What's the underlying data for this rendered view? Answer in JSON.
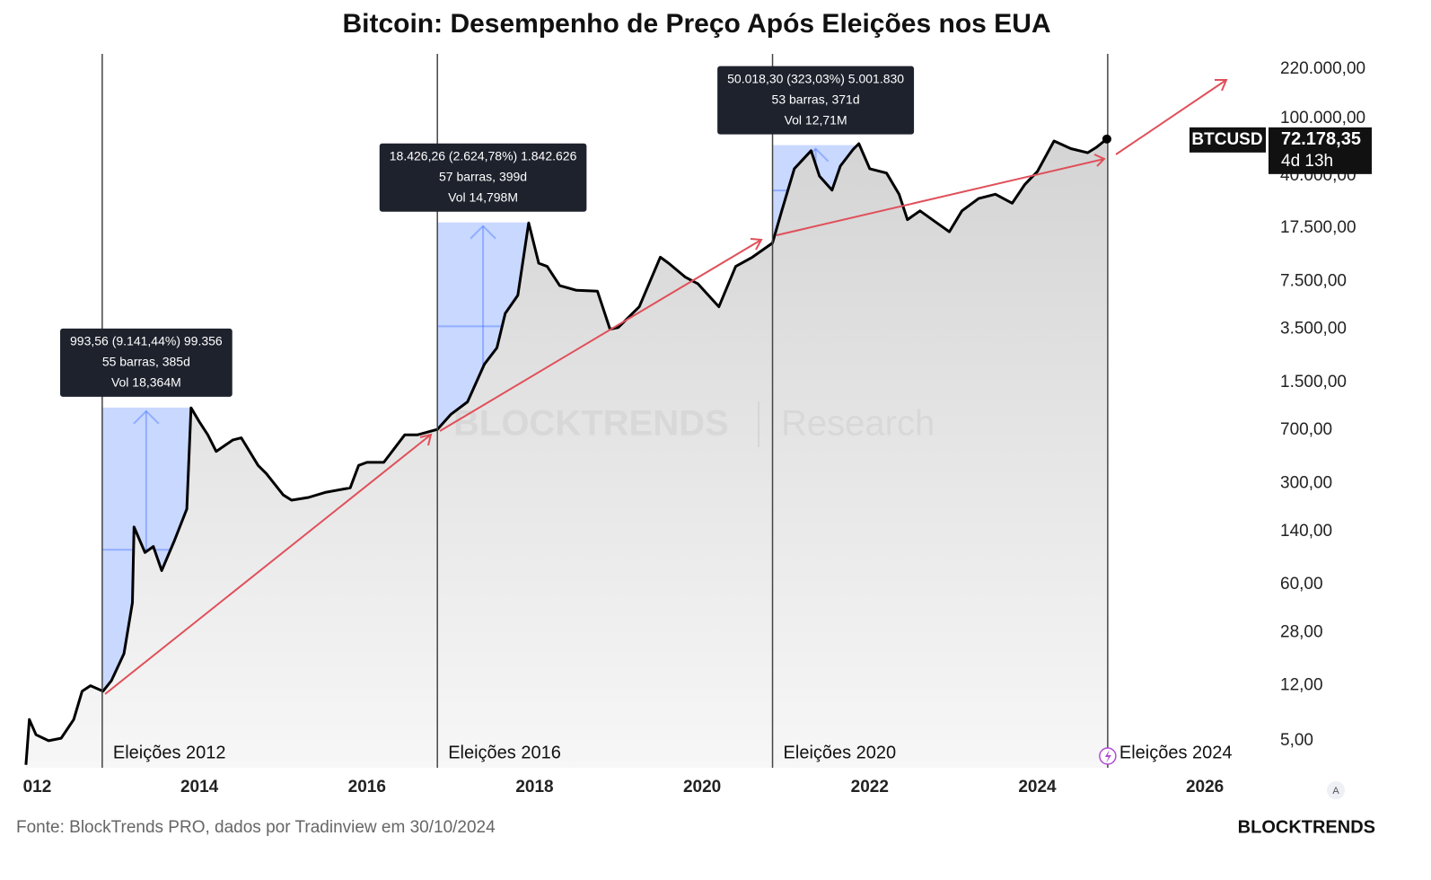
{
  "chart_data": {
    "type": "line",
    "title": "Bitcoin: Desempenho de Preço Após Eleições nos EUA",
    "source": "Fonte: BlockTrends PRO, dados por Tradinview em 30/10/2024",
    "brand": "BLOCKTRENDS",
    "watermark": [
      "BLOCKTRENDS",
      "Research"
    ],
    "scale_button": "A",
    "log_scale": true,
    "grid": false,
    "series": [
      {
        "name": "BTCUSD",
        "color": "#000000",
        "x": [
          2011.93,
          2011.97,
          2012.05,
          2012.2,
          2012.35,
          2012.5,
          2012.6,
          2012.7,
          2012.85,
          2012.95,
          2013.1,
          2013.2,
          2013.22,
          2013.35,
          2013.45,
          2013.55,
          2013.7,
          2013.85,
          2013.9,
          2014.0,
          2014.1,
          2014.2,
          2014.4,
          2014.5,
          2014.7,
          2014.8,
          2015.0,
          2015.1,
          2015.3,
          2015.5,
          2015.8,
          2015.9,
          2016.0,
          2016.2,
          2016.45,
          2016.6,
          2016.84,
          2017.0,
          2017.2,
          2017.4,
          2017.55,
          2017.65,
          2017.8,
          2017.93,
          2018.05,
          2018.15,
          2018.3,
          2018.5,
          2018.75,
          2018.9,
          2019.0,
          2019.25,
          2019.5,
          2019.6,
          2019.8,
          2019.95,
          2020.2,
          2020.4,
          2020.6,
          2020.84,
          2020.95,
          2021.1,
          2021.3,
          2021.4,
          2021.55,
          2021.65,
          2021.8,
          2021.87,
          2022.0,
          2022.2,
          2022.35,
          2022.45,
          2022.6,
          2022.8,
          2022.95,
          2023.1,
          2023.3,
          2023.5,
          2023.7,
          2023.85,
          2024.0,
          2024.2,
          2024.4,
          2024.6,
          2024.7,
          2024.83
        ],
        "values": [
          3.4,
          7,
          5.5,
          5,
          5.2,
          7,
          11,
          12,
          11,
          13,
          20,
          45,
          150,
          100,
          110,
          75,
          120,
          200,
          1000,
          800,
          650,
          500,
          600,
          620,
          400,
          350,
          250,
          230,
          240,
          260,
          280,
          400,
          420,
          420,
          650,
          650,
          710,
          900,
          1100,
          2000,
          2600,
          4500,
          6000,
          19000,
          10000,
          9500,
          7000,
          6500,
          6400,
          3500,
          3600,
          5000,
          11000,
          10000,
          8000,
          7200,
          5000,
          9500,
          11000,
          13800,
          23000,
          45000,
          60000,
          40000,
          32000,
          47000,
          61000,
          67000,
          45000,
          42000,
          30000,
          20000,
          23000,
          19000,
          16500,
          23000,
          28000,
          30000,
          26000,
          35000,
          43000,
          70000,
          62000,
          58000,
          63000,
          72178.35
        ]
      }
    ],
    "last_price": {
      "symbol": "BTCUSD",
      "label": "72.178,35",
      "countdown": "4d 13h"
    },
    "xlim": [
      2011.92,
      2026.62
    ],
    "xticks": [
      {
        "value": 2012,
        "label": "012"
      },
      2014,
      2016,
      2018,
      2020,
      2022,
      2024,
      2026
    ],
    "ylim": [
      3.25,
      280000
    ],
    "yticks": [
      {
        "value": 5,
        "label": "5,00"
      },
      {
        "value": 12,
        "label": "12,00"
      },
      {
        "value": 28,
        "label": "28,00"
      },
      {
        "value": 60,
        "label": "60,00"
      },
      {
        "value": 140,
        "label": "140,00"
      },
      {
        "value": 300,
        "label": "300,00"
      },
      {
        "value": 700,
        "label": "700,00"
      },
      {
        "value": 1500,
        "label": "1.500,00"
      },
      {
        "value": 3500,
        "label": "3.500,00"
      },
      {
        "value": 7500,
        "label": "7.500,00"
      },
      {
        "value": 17500,
        "label": "17.500,00"
      },
      {
        "value": 40000,
        "label": "40.000,00"
      },
      {
        "value": 100000,
        "label": "100.000,00"
      },
      {
        "value": 220000,
        "label": "220.000,00"
      }
    ],
    "elections": [
      {
        "x": 2012.84,
        "label": "Eleições 2012"
      },
      {
        "x": 2016.84,
        "label": "Eleições 2016"
      },
      {
        "x": 2020.84,
        "label": "Eleições 2020"
      },
      {
        "x": 2024.84,
        "label": "Eleições 2024"
      }
    ],
    "measures": [
      {
        "x": [
          2012.84,
          2013.89
        ],
        "from": 10.87,
        "to": 1004.43,
        "color": "#2962ff",
        "lines": [
          "993,56 (9.141,44%) 99.356",
          "55 barras, 385d",
          "Vol 18,364M"
        ]
      },
      {
        "x": [
          2016.84,
          2017.93
        ],
        "from": 702,
        "to": 19128,
        "color": "#2962ff",
        "lines": [
          "18.426,26 (2.624,78%) 1.842.626",
          "57 barras, 399d",
          "Vol 14,798M"
        ]
      },
      {
        "x": [
          2020.84,
          2021.87
        ],
        "from": 15484,
        "to": 65502,
        "color": "#2962ff",
        "lines": [
          "50.018,30 (323,03%) 5.001.830",
          "53 barras, 371d",
          "Vol 12,71M"
        ]
      }
    ]
  }
}
